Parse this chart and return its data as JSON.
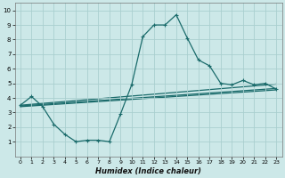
{
  "title": "",
  "xlabel": "Humidex (Indice chaleur)",
  "background_color": "#cce8e8",
  "grid_color": "#aacfcf",
  "line_color": "#1a6b6b",
  "xlim": [
    -0.5,
    23.5
  ],
  "ylim": [
    0,
    10.5
  ],
  "xticks": [
    0,
    1,
    2,
    3,
    4,
    5,
    6,
    7,
    8,
    9,
    10,
    11,
    12,
    13,
    14,
    15,
    16,
    17,
    18,
    19,
    20,
    21,
    22,
    23
  ],
  "yticks": [
    1,
    2,
    3,
    4,
    5,
    6,
    7,
    8,
    9,
    10
  ],
  "main_line": {
    "x": [
      0,
      1,
      2,
      3,
      4,
      5,
      6,
      7,
      8,
      9,
      10,
      11,
      12,
      13,
      14,
      15,
      16,
      17,
      18,
      19,
      20,
      21,
      22,
      23
    ],
    "y": [
      3.5,
      4.1,
      3.4,
      2.2,
      1.5,
      1.0,
      1.1,
      1.1,
      1.0,
      2.9,
      4.9,
      8.2,
      9.0,
      9.0,
      9.7,
      8.1,
      6.6,
      6.2,
      5.0,
      4.9,
      5.2,
      4.9,
      5.0,
      4.6
    ]
  },
  "trend_lines": [
    {
      "x": [
        0,
        23
      ],
      "y": [
        3.5,
        4.95
      ]
    },
    {
      "x": [
        0,
        23
      ],
      "y": [
        3.4,
        4.55
      ]
    },
    {
      "x": [
        0,
        23
      ],
      "y": [
        3.45,
        4.65
      ]
    }
  ],
  "marker_style": "+",
  "marker_size": 3,
  "line_width": 0.9
}
